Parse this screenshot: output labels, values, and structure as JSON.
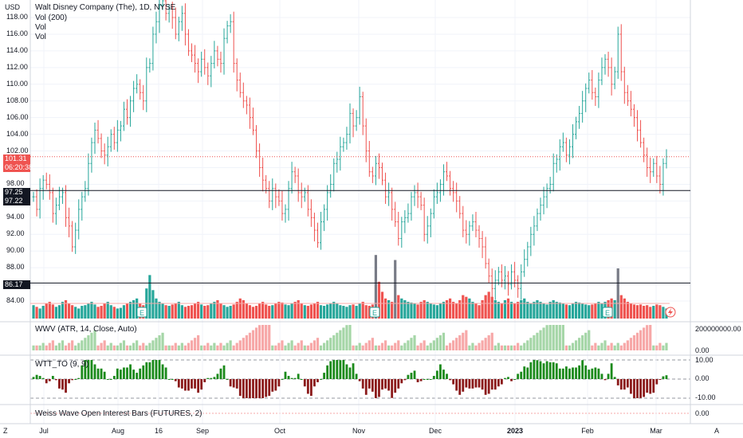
{
  "header": {
    "currency": "USD",
    "symbol": "Walt Disney Company (The), 1D, NYSE",
    "indicators": [
      "Vol (200)",
      "Vol",
      "Vol"
    ]
  },
  "price_axis": {
    "ticks": [
      "118.00",
      "116.00",
      "114.00",
      "112.00",
      "110.00",
      "108.00",
      "106.00",
      "104.00",
      "102.00",
      "100.00",
      "98.00",
      "96.00",
      "94.00",
      "92.00",
      "90.00",
      "88.00",
      "86.00",
      "84.00"
    ],
    "last_price": "101.31",
    "countdown": "06:20:38",
    "level_1a": "97.25",
    "level_1b": "97.22",
    "level_2": "86.17"
  },
  "panes": {
    "wwv_title": "WWV (ATR, 14, Close, Auto)",
    "wwv_ticks": [
      "200000000.00",
      "0.00"
    ],
    "wtt_title": "WTT_TO (9, 9)",
    "wtt_ticks": [
      "10.00",
      "0.00",
      "-10.00"
    ],
    "weiss_title": "Weiss Wave Open Interest Bars (FUTURES, 2)",
    "weiss_ticks": [
      "0.00"
    ]
  },
  "time_axis": [
    "Jul",
    "Aug",
    "16",
    "Sep",
    "Oct",
    "Nov",
    "Dec",
    "2023",
    "Feb",
    "Mar"
  ],
  "footer": {
    "left": "Z",
    "right": "A"
  },
  "colors": {
    "up": "#26a69a",
    "down": "#ef5350",
    "up_light": "#a5d6a7",
    "down_light": "#f7a8a8",
    "osc_up": "#1b8a1b",
    "osc_down": "#8b1a1a",
    "gray": "#787b86"
  },
  "chart_data": {
    "type": "ohlc",
    "title": "Walt Disney Company (The), 1D, NYSE",
    "ylim": [
      83,
      119
    ],
    "closes": [
      96.5,
      95.0,
      97.5,
      98.5,
      98.0,
      97.0,
      94.5,
      95.5,
      96.5,
      97.0,
      94.0,
      93.0,
      90.5,
      92.5,
      95.0,
      96.5,
      97.5,
      100.5,
      103.0,
      104.5,
      103.5,
      102.0,
      101.5,
      102.5,
      104.0,
      103.0,
      104.5,
      105.0,
      107.0,
      106.0,
      108.0,
      109.5,
      110.0,
      109.0,
      108.0,
      112.0,
      112.5,
      116.0,
      117.5,
      119.5,
      120.0,
      118.5,
      119.0,
      118.0,
      116.0,
      117.5,
      118.5,
      116.0,
      114.0,
      113.5,
      112.5,
      111.5,
      113.0,
      112.0,
      111.0,
      112.5,
      114.0,
      113.0,
      112.5,
      115.5,
      117.0,
      117.5,
      112.5,
      110.5,
      109.0,
      108.0,
      107.5,
      106.0,
      104.5,
      102.0,
      100.0,
      98.5,
      97.5,
      96.0,
      97.5,
      96.5,
      96.0,
      94.5,
      95.0,
      97.5,
      99.5,
      99.0,
      97.0,
      96.5,
      97.0,
      95.0,
      94.0,
      92.5,
      91.0,
      93.5,
      95.0,
      97.0,
      98.0,
      100.5,
      101.0,
      102.5,
      103.0,
      104.0,
      106.5,
      105.0,
      106.0,
      108.5,
      105.0,
      102.0,
      99.5,
      99.0,
      100.5,
      100.0,
      98.5,
      96.5,
      97.0,
      95.0,
      93.5,
      91.5,
      93.5,
      94.0,
      94.5,
      96.5,
      97.0,
      96.5,
      95.5,
      92.0,
      93.0,
      94.5,
      96.5,
      97.0,
      98.0,
      99.5,
      99.0,
      97.5,
      97.0,
      96.0,
      94.5,
      92.5,
      92.0,
      93.0,
      93.5,
      92.5,
      91.5,
      90.5,
      88.5,
      87.0,
      85.5,
      86.5,
      87.5,
      86.5,
      87.0,
      86.0,
      87.5,
      86.5,
      85.5,
      87.5,
      89.0,
      90.5,
      92.0,
      93.0,
      94.5,
      95.5,
      96.5,
      97.5,
      98.0,
      100.5,
      101.0,
      102.5,
      103.0,
      101.5,
      102.5,
      104.0,
      105.5,
      106.5,
      108.0,
      109.5,
      110.5,
      109.0,
      108.5,
      110.5,
      112.0,
      113.0,
      112.0,
      110.0,
      111.5,
      116.0,
      111.5,
      109.0,
      108.0,
      107.0,
      106.0,
      104.5,
      103.0,
      101.5,
      100.0,
      99.5,
      100.5,
      99.0,
      98.0,
      100.5,
      101.31
    ],
    "volume_rel": [
      0.4,
      0.35,
      0.3,
      0.38,
      0.45,
      0.5,
      0.42,
      0.35,
      0.4,
      0.5,
      0.55,
      0.45,
      0.4,
      0.35,
      0.3,
      0.38,
      0.4,
      0.45,
      0.5,
      0.42,
      0.35,
      0.38,
      0.45,
      0.5,
      0.4,
      0.35,
      0.3,
      0.32,
      0.4,
      0.45,
      0.5,
      0.55,
      0.6,
      0.45,
      0.4,
      0.9,
      1.3,
      0.85,
      0.6,
      0.5,
      0.45,
      0.4,
      0.38,
      0.42,
      0.45,
      0.5,
      0.4,
      0.35,
      0.38,
      0.4,
      0.45,
      0.5,
      0.42,
      0.38,
      0.4,
      0.45,
      0.5,
      0.55,
      0.45,
      0.4,
      0.35,
      0.38,
      0.42,
      0.5,
      0.6,
      0.55,
      0.45,
      0.4,
      0.35,
      0.38,
      0.45,
      0.5,
      0.42,
      0.38,
      0.4,
      0.45,
      0.5,
      0.48,
      0.42,
      0.4,
      0.45,
      0.5,
      0.55,
      0.45,
      0.4,
      0.38,
      0.42,
      0.45,
      0.5,
      0.4,
      0.38,
      0.42,
      0.45,
      0.5,
      0.45,
      0.4,
      0.38,
      0.35,
      0.4,
      0.42,
      0.38,
      0.45,
      0.5,
      0.4,
      0.38,
      0.42,
      1.9,
      1.1,
      0.8,
      0.6,
      0.55,
      0.5,
      1.75,
      0.7,
      0.6,
      0.55,
      0.5,
      0.48,
      0.45,
      0.42,
      0.5,
      0.55,
      0.5,
      0.45,
      0.42,
      0.4,
      0.45,
      0.5,
      0.55,
      0.6,
      0.5,
      0.45,
      0.55,
      0.7,
      0.65,
      0.6,
      0.5,
      0.45,
      0.4,
      0.55,
      0.7,
      0.8,
      0.65,
      0.55,
      0.5,
      0.45,
      0.55,
      0.6,
      0.5,
      0.45,
      0.5,
      0.55,
      0.6,
      0.5,
      0.45,
      0.5,
      0.55,
      0.5,
      0.45,
      0.42,
      0.5,
      0.55,
      0.5,
      0.48,
      0.45,
      0.42,
      0.4,
      0.45,
      0.5,
      0.48,
      0.45,
      0.42,
      0.4,
      0.42,
      0.45,
      0.5,
      0.45,
      0.5,
      0.55,
      0.6,
      0.55,
      1.5,
      0.7,
      0.6,
      0.5,
      0.45,
      0.42,
      0.4,
      0.42,
      0.38,
      0.4,
      0.35,
      0.38,
      0.42,
      0.4,
      0.35,
      0.3
    ]
  }
}
